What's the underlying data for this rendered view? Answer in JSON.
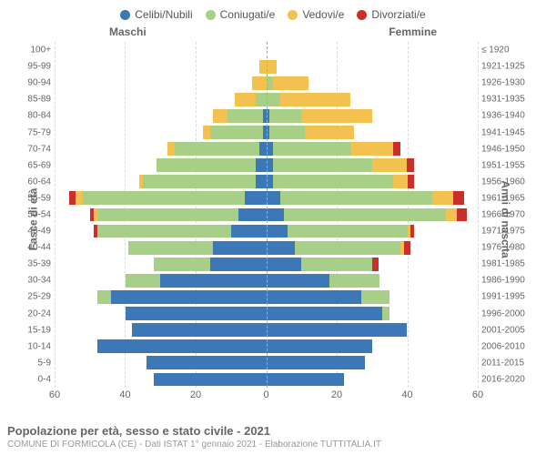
{
  "legend": [
    {
      "label": "Celibi/Nubili",
      "color": "#3b78b5"
    },
    {
      "label": "Coniugati/e",
      "color": "#a7cf87"
    },
    {
      "label": "Vedovi/e",
      "color": "#f3c14f"
    },
    {
      "label": "Divorziati/e",
      "color": "#c9302c"
    }
  ],
  "columns": {
    "male": "Maschi",
    "female": "Femmine"
  },
  "axis_labels": {
    "left": "Fasce di età",
    "right": "Anni di nascita"
  },
  "x_axis": {
    "max": 60,
    "ticks": [
      60,
      40,
      20,
      0,
      20,
      40,
      60
    ]
  },
  "styling": {
    "background_color": "#ffffff",
    "grid_color": "#dddddd",
    "center_line_color": "#aaaaaa",
    "text_color": "#666666",
    "font_family": "Arial, Helvetica, sans-serif",
    "title_fontsize": 13,
    "label_fontsize": 11,
    "tick_fontsize": 10,
    "chart_type": "population-pyramid-stacked"
  },
  "footer": {
    "title": "Popolazione per età, sesso e stato civile - 2021",
    "subtitle": "COMUNE DI FORMICOLA (CE) - Dati ISTAT 1° gennaio 2021 - Elaborazione TUTTITALIA.IT"
  },
  "rows": [
    {
      "age": "100+",
      "year": "≤ 1920",
      "male": [
        0,
        0,
        0,
        0
      ],
      "female": [
        0,
        0,
        0,
        0
      ]
    },
    {
      "age": "95-99",
      "year": "1921-1925",
      "male": [
        0,
        0,
        2,
        0
      ],
      "female": [
        0,
        0,
        3,
        0
      ]
    },
    {
      "age": "90-94",
      "year": "1926-1930",
      "male": [
        0,
        0,
        4,
        0
      ],
      "female": [
        0,
        2,
        10,
        0
      ]
    },
    {
      "age": "85-89",
      "year": "1931-1935",
      "male": [
        0,
        3,
        6,
        0
      ],
      "female": [
        0,
        4,
        20,
        0
      ]
    },
    {
      "age": "80-84",
      "year": "1936-1940",
      "male": [
        1,
        10,
        4,
        0
      ],
      "female": [
        1,
        9,
        20,
        0
      ]
    },
    {
      "age": "75-79",
      "year": "1941-1945",
      "male": [
        1,
        15,
        2,
        0
      ],
      "female": [
        1,
        10,
        14,
        0
      ]
    },
    {
      "age": "70-74",
      "year": "1946-1950",
      "male": [
        2,
        24,
        2,
        0
      ],
      "female": [
        2,
        22,
        12,
        2
      ]
    },
    {
      "age": "65-69",
      "year": "1951-1955",
      "male": [
        3,
        28,
        0,
        0
      ],
      "female": [
        2,
        28,
        10,
        2
      ]
    },
    {
      "age": "60-64",
      "year": "1956-1960",
      "male": [
        3,
        32,
        1,
        0
      ],
      "female": [
        2,
        34,
        4,
        2
      ]
    },
    {
      "age": "55-59",
      "year": "1961-1965",
      "male": [
        6,
        46,
        2,
        2
      ],
      "female": [
        4,
        43,
        6,
        3
      ]
    },
    {
      "age": "50-54",
      "year": "1966-1970",
      "male": [
        8,
        40,
        1,
        1
      ],
      "female": [
        5,
        46,
        3,
        3
      ]
    },
    {
      "age": "45-49",
      "year": "1971-1975",
      "male": [
        10,
        38,
        0,
        1
      ],
      "female": [
        6,
        34,
        1,
        1
      ]
    },
    {
      "age": "40-44",
      "year": "1976-1980",
      "male": [
        15,
        24,
        0,
        0
      ],
      "female": [
        8,
        30,
        1,
        2
      ]
    },
    {
      "age": "35-39",
      "year": "1981-1985",
      "male": [
        16,
        16,
        0,
        0
      ],
      "female": [
        10,
        20,
        0,
        2
      ]
    },
    {
      "age": "30-34",
      "year": "1986-1990",
      "male": [
        30,
        10,
        0,
        0
      ],
      "female": [
        18,
        14,
        0,
        0
      ]
    },
    {
      "age": "25-29",
      "year": "1991-1995",
      "male": [
        44,
        4,
        0,
        0
      ],
      "female": [
        27,
        8,
        0,
        0
      ]
    },
    {
      "age": "20-24",
      "year": "1996-2000",
      "male": [
        40,
        0,
        0,
        0
      ],
      "female": [
        33,
        2,
        0,
        0
      ]
    },
    {
      "age": "15-19",
      "year": "2001-2005",
      "male": [
        38,
        0,
        0,
        0
      ],
      "female": [
        40,
        0,
        0,
        0
      ]
    },
    {
      "age": "10-14",
      "year": "2006-2010",
      "male": [
        48,
        0,
        0,
        0
      ],
      "female": [
        30,
        0,
        0,
        0
      ]
    },
    {
      "age": "5-9",
      "year": "2011-2015",
      "male": [
        34,
        0,
        0,
        0
      ],
      "female": [
        28,
        0,
        0,
        0
      ]
    },
    {
      "age": "0-4",
      "year": "2016-2020",
      "male": [
        32,
        0,
        0,
        0
      ],
      "female": [
        22,
        0,
        0,
        0
      ]
    }
  ]
}
